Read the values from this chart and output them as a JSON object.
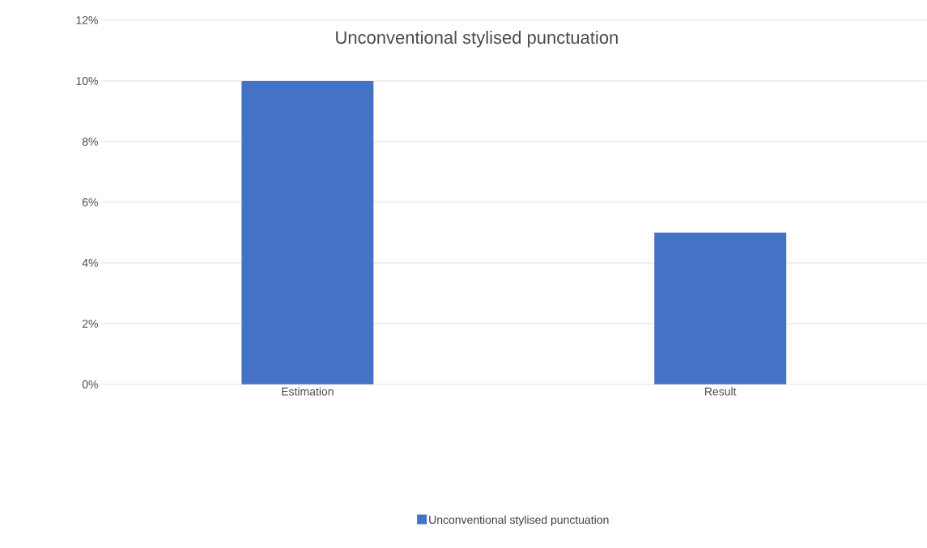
{
  "chart_data": {
    "type": "bar",
    "title": "Unconventional stylised punctuation",
    "categories": [
      "Estimation",
      "Result"
    ],
    "series": [
      {
        "name": "Unconventional stylised punctuation",
        "color": "#4472c4",
        "values": [
          10,
          5
        ]
      }
    ],
    "ylim": [
      0,
      12
    ],
    "yticks": [
      {
        "value": 0,
        "label": "0%"
      },
      {
        "value": 2,
        "label": "2%"
      },
      {
        "value": 4,
        "label": "4%"
      },
      {
        "value": 6,
        "label": "6%"
      },
      {
        "value": 8,
        "label": "8%"
      },
      {
        "value": 10,
        "label": "10%"
      },
      {
        "value": 12,
        "label": "12%"
      }
    ],
    "grid": "y",
    "legend": "bottom"
  }
}
